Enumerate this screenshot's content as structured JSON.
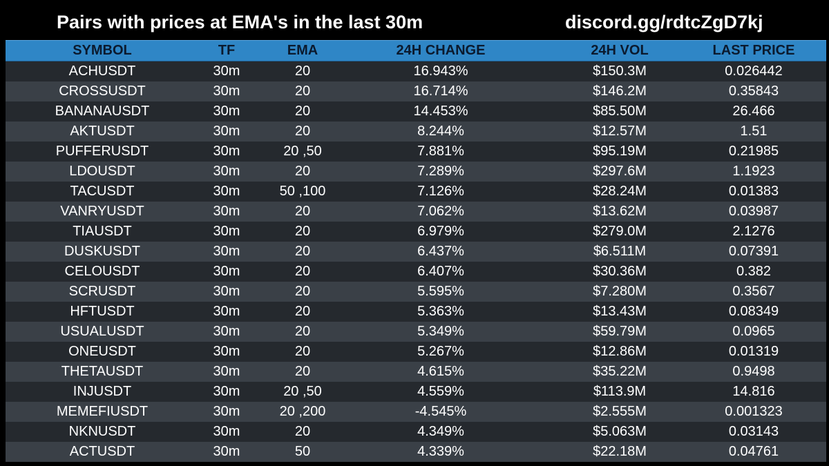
{
  "header": {
    "title": "Pairs with prices at EMA's in the last 30m",
    "link": "discord.gg/rdtcZgD7kj"
  },
  "table": {
    "columns": [
      "SYMBOL",
      "TF",
      "EMA",
      "24H CHANGE",
      "24H VOL",
      "LAST PRICE"
    ],
    "rows": [
      {
        "symbol": "ACHUSDT",
        "tf": "30m",
        "ema": "20",
        "change": "16.943%",
        "vol": "$150.3M",
        "price": "0.026442"
      },
      {
        "symbol": "CROSSUSDT",
        "tf": "30m",
        "ema": "20",
        "change": "16.714%",
        "vol": "$146.2M",
        "price": "0.35843"
      },
      {
        "symbol": "BANANAUSDT",
        "tf": "30m",
        "ema": "20",
        "change": "14.453%",
        "vol": "$85.50M",
        "price": "26.466"
      },
      {
        "symbol": "AKTUSDT",
        "tf": "30m",
        "ema": "20",
        "change": "8.244%",
        "vol": "$12.57M",
        "price": "1.51"
      },
      {
        "symbol": "PUFFERUSDT",
        "tf": "30m",
        "ema": "20 ,50",
        "change": "7.881%",
        "vol": "$95.19M",
        "price": "0.21985"
      },
      {
        "symbol": "LDOUSDT",
        "tf": "30m",
        "ema": "20",
        "change": "7.289%",
        "vol": "$297.6M",
        "price": "1.1923"
      },
      {
        "symbol": "TACUSDT",
        "tf": "30m",
        "ema": "50 ,100",
        "change": "7.126%",
        "vol": "$28.24M",
        "price": "0.01383"
      },
      {
        "symbol": "VANRYUSDT",
        "tf": "30m",
        "ema": "20",
        "change": "7.062%",
        "vol": "$13.62M",
        "price": "0.03987"
      },
      {
        "symbol": "TIAUSDT",
        "tf": "30m",
        "ema": "20",
        "change": "6.979%",
        "vol": "$279.0M",
        "price": "2.1276"
      },
      {
        "symbol": "DUSKUSDT",
        "tf": "30m",
        "ema": "20",
        "change": "6.437%",
        "vol": "$6.511M",
        "price": "0.07391"
      },
      {
        "symbol": "CELOUSDT",
        "tf": "30m",
        "ema": "20",
        "change": "6.407%",
        "vol": "$30.36M",
        "price": "0.382"
      },
      {
        "symbol": "SCRUSDT",
        "tf": "30m",
        "ema": "20",
        "change": "5.595%",
        "vol": "$7.280M",
        "price": "0.3567"
      },
      {
        "symbol": "HFTUSDT",
        "tf": "30m",
        "ema": "20",
        "change": "5.363%",
        "vol": "$13.43M",
        "price": "0.08349"
      },
      {
        "symbol": "USUALUSDT",
        "tf": "30m",
        "ema": "20",
        "change": "5.349%",
        "vol": "$59.79M",
        "price": "0.0965"
      },
      {
        "symbol": "ONEUSDT",
        "tf": "30m",
        "ema": "20",
        "change": "5.267%",
        "vol": "$12.86M",
        "price": "0.01319"
      },
      {
        "symbol": "THETAUSDT",
        "tf": "30m",
        "ema": "20",
        "change": "4.615%",
        "vol": "$35.22M",
        "price": "0.9498"
      },
      {
        "symbol": "INJUSDT",
        "tf": "30m",
        "ema": "20 ,50",
        "change": "4.559%",
        "vol": "$113.9M",
        "price": "14.816"
      },
      {
        "symbol": "MEMEFIUSDT",
        "tf": "30m",
        "ema": "20 ,200",
        "change": "-4.545%",
        "vol": "$2.555M",
        "price": "0.001323"
      },
      {
        "symbol": "NKNUSDT",
        "tf": "30m",
        "ema": "20",
        "change": "4.349%",
        "vol": "$5.063M",
        "price": "0.03143"
      },
      {
        "symbol": "ACTUSDT",
        "tf": "30m",
        "ema": "50",
        "change": "4.339%",
        "vol": "$22.18M",
        "price": "0.04761"
      }
    ]
  },
  "colors": {
    "background": "#000000",
    "header_row": "#2f86c6",
    "row_dark": "#25292e",
    "row_light": "#3a4047",
    "text": "#ffffff"
  }
}
